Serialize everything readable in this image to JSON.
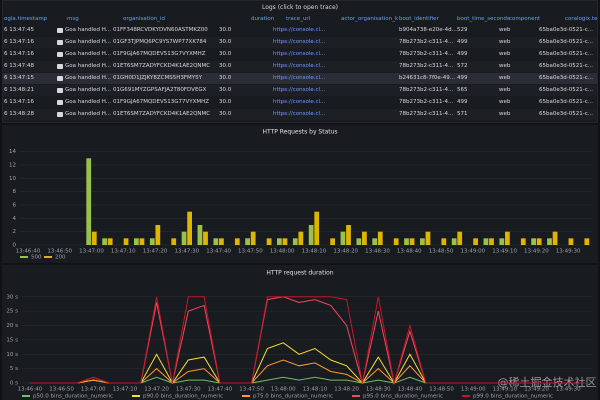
{
  "logs": {
    "title": "Logs (click to open trace)",
    "columns": {
      "timestamp": "ogla.timestamp",
      "msg": "msg",
      "organisation_id": "organisation_id",
      "duration": "duration",
      "trace_url": "trace_url",
      "actor": "actor_organisation_k",
      "boot_identifier": "boot_identifier",
      "boot_time_seconds": "boot_time_seconds",
      "component": "component",
      "coralogix": "coralogix.te"
    },
    "rows": [
      {
        "timestamp": "6 13:47:45",
        "msg": "Goa handled H...",
        "organisation_id": "01FF348RCVDKYDVN60ASTMKZ00",
        "duration": "30.0",
        "trace_url": "https://console.cl...",
        "boot_identifier": "b904a738-e20e-4d...",
        "boot_time_seconds": "529",
        "component": "web",
        "coralogix": "65ba0e3d-0521-c..."
      },
      {
        "timestamp": "6 13:47:16",
        "msg": "Goa handled H...",
        "organisation_id": "01GF3TJPMQ6PC9YS7WP77XK784",
        "duration": "30.0",
        "trace_url": "https://console.cl...",
        "boot_identifier": "78b273b2-c311-4...",
        "boot_time_seconds": "499",
        "component": "web",
        "coralogix": "65ba0e3d-0521-c..."
      },
      {
        "timestamp": "6 13:47:16",
        "msg": "Goa handled H...",
        "organisation_id": "01F9GJA67MQDEV513G7VYXMHZ",
        "duration": "30.0",
        "trace_url": "https://console.cl...",
        "boot_identifier": "78b273b2-c311-4...",
        "boot_time_seconds": "499",
        "component": "web",
        "coralogix": "65ba0e3d-0521-c..."
      },
      {
        "timestamp": "6 13:47:48",
        "msg": "Goa handled H...",
        "organisation_id": "01ET6SM7ZADYFCKD4K1AE2QNMC",
        "duration": "30.0",
        "trace_url": "https://console.cl...",
        "boot_identifier": "78b273b2-c311-4...",
        "boot_time_seconds": "572",
        "component": "web",
        "coralogix": "65ba0e3d-0521-c..."
      },
      {
        "timestamp": "6 13:47:15",
        "msg": "Goa handled H...",
        "organisation_id": "01GH0D1JZJKY8ZCMS5H3FMY5Y",
        "duration": "30.0",
        "trace_url": "https://console.cl...",
        "boot_identifier": "b24631c8-7f0e-49...",
        "boot_time_seconds": "499",
        "component": "web",
        "coralogix": "65ba0e3d-0521-c..."
      },
      {
        "timestamp": "6 13:48:21",
        "msg": "Goa handled H...",
        "organisation_id": "01G691MYZGPSAFJA2T80FDVEGX",
        "duration": "30.0",
        "trace_url": "https://console.cl...",
        "boot_identifier": "78b273b2-c311-4...",
        "boot_time_seconds": "565",
        "component": "web",
        "coralogix": "65ba0e3d-0521-c..."
      },
      {
        "timestamp": "6 13:47:16",
        "msg": "Goa handled H...",
        "organisation_id": "01F9GJA67MQDEV513G77VYXMHZ",
        "duration": "30.0",
        "trace_url": "https://console.cl...",
        "boot_identifier": "78b273b2-c311-4...",
        "boot_time_seconds": "499",
        "component": "web",
        "coralogix": "65ba0e3d-0521-c..."
      },
      {
        "timestamp": "6 13:48:28",
        "msg": "Goa handled H...",
        "organisation_id": "01ET6SM7ZADYFCKD4K1AE2QNMC",
        "duration": "30.0",
        "trace_url": "https://console.cl...",
        "boot_identifier": "78b273b2-c311-4...",
        "boot_time_seconds": "571",
        "component": "web",
        "coralogix": "65ba0e3d-0521-c..."
      }
    ]
  },
  "chart_data": [
    {
      "type": "bar",
      "title": "HTTP Requests by Status",
      "categories": [
        "13:46:40",
        null,
        "13:46:50",
        null,
        "13:47:00",
        null,
        "13:47:10",
        null,
        "13:47:20",
        null,
        "13:47:30",
        null,
        "13:47:40",
        null,
        "13:47:50",
        null,
        "13:48:00",
        null,
        "13:48:10",
        null,
        "13:48:20",
        null,
        "13:48:30",
        null,
        "13:48:40",
        null,
        "13:48:50",
        null,
        "13:49:00",
        null,
        "13:49:10",
        null,
        "13:49:20",
        null,
        "13:49:30",
        null
      ],
      "series": [
        {
          "name": "500",
          "color": "#9ac24a",
          "values": [
            0,
            0,
            0,
            0,
            13,
            1,
            0,
            1,
            1,
            0,
            2,
            3,
            1,
            0,
            1,
            0,
            1,
            1,
            3,
            0,
            2,
            1,
            1,
            0,
            1,
            1,
            0,
            1,
            0,
            1,
            1,
            0,
            1,
            1,
            0,
            0
          ]
        },
        {
          "name": "200",
          "color": "#e0b400",
          "values": [
            0,
            0,
            0,
            0,
            2,
            1,
            1,
            1,
            3,
            1,
            5,
            2,
            1,
            1,
            2,
            1,
            1,
            2,
            5,
            1,
            3,
            2,
            2,
            1,
            1,
            2,
            1,
            2,
            1,
            1,
            2,
            1,
            1,
            2,
            1,
            1
          ]
        }
      ],
      "ylim": [
        0,
        15
      ],
      "yticks": [
        0,
        2,
        4,
        6,
        8,
        10,
        12,
        14
      ],
      "grid": true
    },
    {
      "type": "line",
      "title": "HTTP request duration",
      "categories": [
        "13:46:40",
        null,
        "13:46:50",
        null,
        "13:47:00",
        null,
        "13:47:10",
        null,
        "13:47:20",
        null,
        "13:47:30",
        null,
        "13:47:40",
        null,
        "13:47:50",
        null,
        "13:48:00",
        null,
        "13:48:10",
        null,
        "13:48:20",
        null,
        "13:48:30",
        null,
        "13:48:40",
        null,
        "13:48:50",
        null,
        "13:49:00",
        null,
        "13:49:10",
        null,
        "13:49:20",
        null,
        "13:49:30",
        null
      ],
      "series": [
        {
          "name": "p50.0 bins_duration_numeric",
          "color": "#73bf69",
          "values": [
            0,
            0,
            0,
            0,
            1,
            0,
            0,
            0,
            2,
            0,
            1,
            1,
            0,
            0,
            0,
            1,
            2,
            1,
            2,
            1,
            1,
            0,
            1,
            0,
            2,
            0,
            0,
            0,
            0,
            0,
            0,
            0,
            0,
            0,
            0,
            0
          ]
        },
        {
          "name": "p90.0 bins_duration_numeric",
          "color": "#fade2a",
          "values": [
            0,
            0,
            0,
            0,
            1,
            0,
            0,
            0,
            10,
            0,
            8,
            9,
            0,
            0,
            0,
            12,
            14,
            10,
            12,
            8,
            6,
            0,
            9,
            0,
            10,
            0,
            0,
            0,
            0,
            0,
            0,
            0,
            0,
            0,
            0,
            0
          ]
        },
        {
          "name": "p75.0 bins_duration_numeric",
          "color": "#ff9830",
          "values": [
            0,
            0,
            0,
            0,
            1,
            0,
            0,
            0,
            5,
            0,
            4,
            5,
            0,
            0,
            0,
            6,
            8,
            6,
            7,
            4,
            3,
            0,
            5,
            0,
            6,
            0,
            0,
            0,
            0,
            0,
            0,
            0,
            0,
            0,
            0,
            0
          ]
        },
        {
          "name": "p95.0 bins_duration_numeric",
          "color": "#f2495c",
          "values": [
            0,
            0,
            0,
            0,
            2,
            0,
            0,
            0,
            28,
            0,
            25,
            27,
            0,
            0,
            0,
            29,
            30,
            28,
            29,
            27,
            20,
            0,
            25,
            0,
            18,
            0,
            0,
            0,
            0,
            0,
            0,
            0,
            0,
            0,
            0,
            0
          ]
        },
        {
          "name": "p99.0 bins_duration_numeric",
          "color": "#c4162a",
          "values": [
            0,
            0,
            0,
            0,
            2,
            0,
            0,
            0,
            30,
            0,
            30,
            30,
            0,
            0,
            0,
            30,
            30,
            30,
            30,
            30,
            29,
            0,
            30,
            0,
            20,
            0,
            0,
            0,
            0,
            0,
            0,
            0,
            0,
            0,
            0,
            0
          ]
        }
      ],
      "ylim": [
        0,
        32
      ],
      "yticks": [
        {
          "value": 0,
          "label": "0 s"
        },
        {
          "value": 5,
          "label": "5 s"
        },
        {
          "value": 10,
          "label": "10 s"
        },
        {
          "value": 15,
          "label": "15 s"
        },
        {
          "value": 20,
          "label": "20 s"
        },
        {
          "value": 25,
          "label": "25 s"
        },
        {
          "value": 30,
          "label": "30 s"
        }
      ],
      "grid": true
    }
  ],
  "watermark": "@稀土掘金技术社区"
}
